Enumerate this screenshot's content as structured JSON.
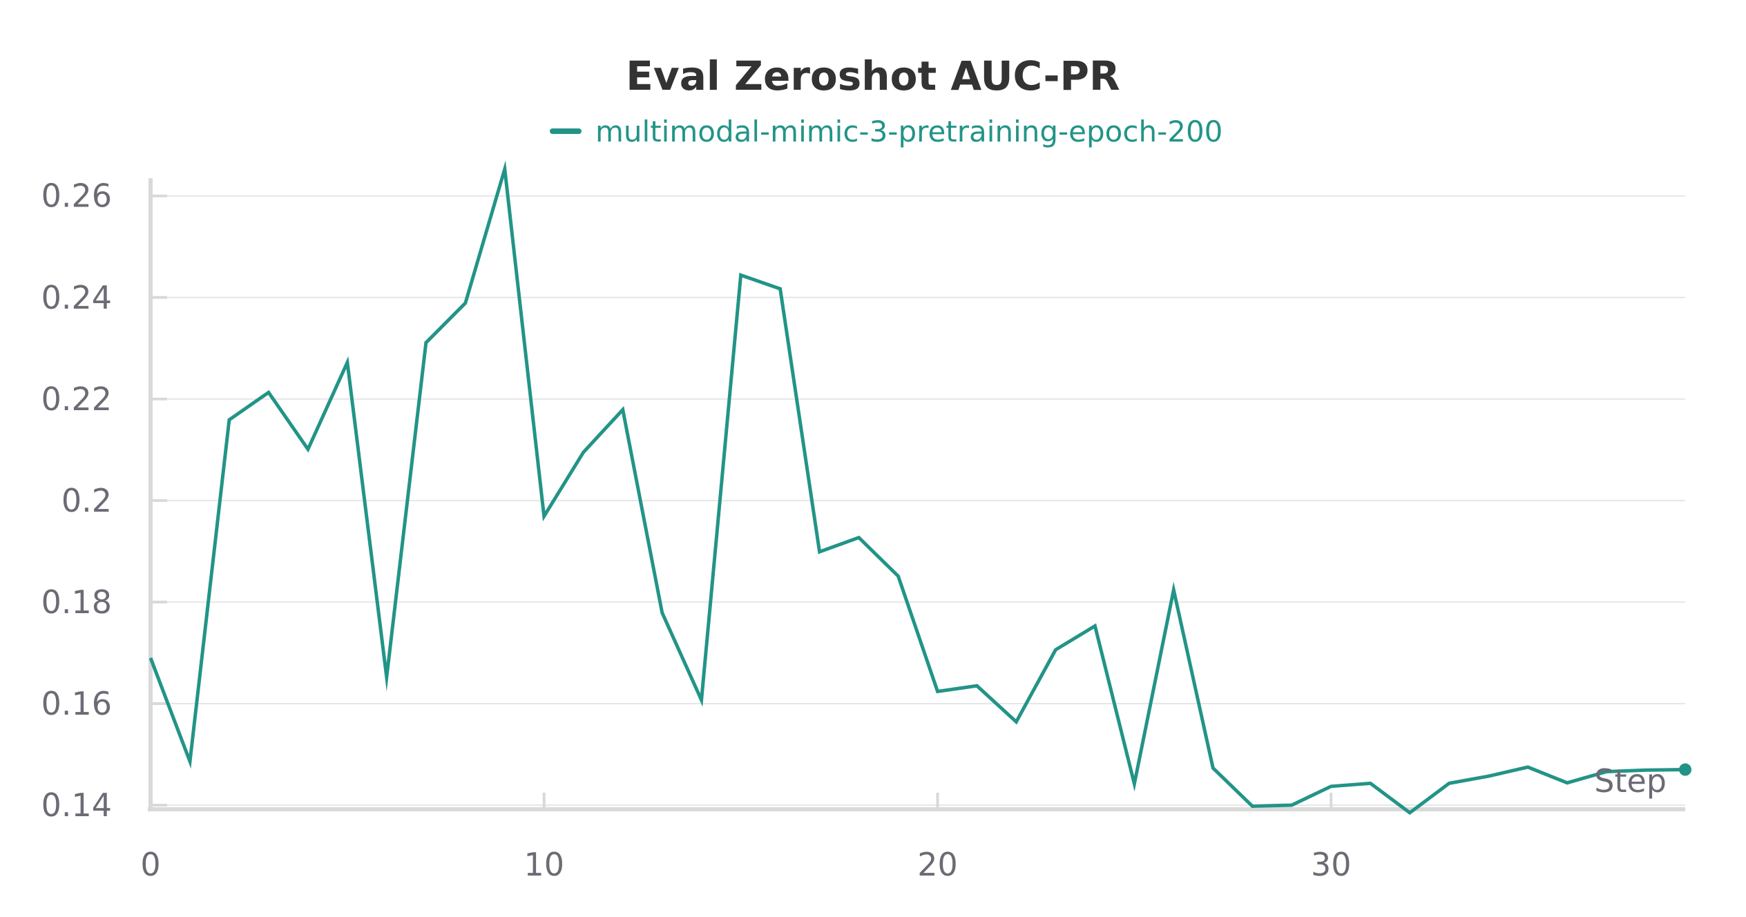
{
  "colors": {
    "series": "#229487",
    "grid": "#e6e6e6",
    "axis": "#d9d9d9",
    "tick_text": "#6b6b76",
    "title": "#333333"
  },
  "chart_data": {
    "type": "line",
    "title": "Eval Zeroshot AUC-PR",
    "xlabel": "Step",
    "ylabel": "",
    "xlim": [
      0,
      39
    ],
    "ylim": [
      0.14,
      0.2635
    ],
    "xticks": [
      0,
      10,
      20,
      30
    ],
    "xtick_labels": [
      "0",
      "10",
      "20",
      "30"
    ],
    "yticks": [
      0.14,
      0.16,
      0.18,
      0.2,
      0.22,
      0.24,
      0.26
    ],
    "ytick_labels": [
      "0.14",
      "0.16",
      "0.18",
      "0.2",
      "0.22",
      "0.24",
      "0.26"
    ],
    "grid": true,
    "legend_position": "top-center",
    "series": [
      {
        "name": "multimodal-mimic-3-pretraining-epoch-200",
        "x": [
          0,
          1,
          2,
          3,
          4,
          5,
          6,
          7,
          8,
          9,
          10,
          11,
          12,
          13,
          14,
          15,
          16,
          17,
          18,
          19,
          20,
          21,
          22,
          23,
          24,
          25,
          26,
          27,
          28,
          29,
          30,
          31,
          32,
          33,
          34,
          35,
          36,
          37,
          38,
          39
        ],
        "y": [
          0.169,
          0.1486,
          0.2159,
          0.2213,
          0.2101,
          0.2272,
          0.1652,
          0.2311,
          0.2389,
          0.2653,
          0.1969,
          0.2095,
          0.2179,
          0.1779,
          0.1607,
          0.2444,
          0.2417,
          0.1899,
          0.1927,
          0.1851,
          0.1624,
          0.1635,
          0.1564,
          0.1706,
          0.1753,
          0.1442,
          0.1824,
          0.1473,
          0.1398,
          0.14,
          0.1437,
          0.1443,
          0.1385,
          0.1443,
          0.1457,
          0.1475,
          0.1444,
          0.1466,
          0.1469,
          0.147
        ]
      }
    ]
  }
}
